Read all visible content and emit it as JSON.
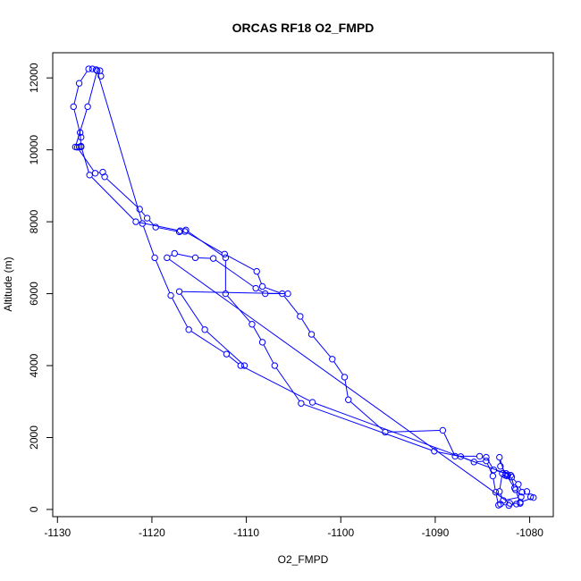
{
  "chart_data": {
    "type": "line",
    "title": "ORCAS RF18 O2_FMPD",
    "xlabel": "O2_FMPD",
    "ylabel": "Altitude (m)",
    "xlim": [
      -1130.5,
      -1077.5
    ],
    "ylim": [
      -200,
      12700
    ],
    "xticks": [
      -1130,
      -1120,
      -1110,
      -1100,
      -1090,
      -1080
    ],
    "yticks": [
      0,
      2000,
      4000,
      6000,
      8000,
      10000,
      12000
    ],
    "grid": false,
    "colors": {
      "series": "#0000ff",
      "axes": "#000000"
    },
    "series": [
      {
        "marker": "open-circle",
        "line": true,
        "points": [
          [
            -1125.4,
            12050
          ],
          [
            -1125.5,
            12200
          ],
          [
            -1125.9,
            12230
          ],
          [
            -1126.3,
            12250
          ],
          [
            -1126.7,
            12250
          ],
          [
            -1127.7,
            11850
          ],
          [
            -1128.3,
            11200
          ],
          [
            -1127.5,
            10350
          ],
          [
            -1127.6,
            10480
          ],
          [
            -1127.5,
            10080
          ],
          [
            -1127.7,
            10080
          ],
          [
            -1127.9,
            10070
          ],
          [
            -1126.0,
            9350
          ],
          [
            -1125.2,
            9380
          ],
          [
            -1125.0,
            9250
          ],
          [
            -1121.3,
            8350
          ],
          [
            -1120.5,
            8100
          ],
          [
            -1119.6,
            7850
          ],
          [
            -1117.1,
            7720
          ],
          [
            -1116.5,
            7730
          ],
          [
            -1112.3,
            7100
          ],
          [
            -1108.9,
            6620
          ],
          [
            -1108.3,
            6200
          ],
          [
            -1106.2,
            6000
          ],
          [
            -1104.3,
            5370
          ],
          [
            -1103.1,
            4870
          ],
          [
            -1100.9,
            4180
          ],
          [
            -1099.6,
            3680
          ],
          [
            -1099.2,
            3050
          ],
          [
            -1095.3,
            2150
          ],
          [
            -1089.2,
            2200
          ],
          [
            -1087.9,
            1480
          ],
          [
            -1085.3,
            1480
          ],
          [
            -1084.6,
            1450
          ],
          [
            -1083.8,
            1100
          ],
          [
            -1082.5,
            1000
          ],
          [
            -1081.9,
            900
          ],
          [
            -1081.2,
            700
          ],
          [
            -1080.8,
            480
          ],
          [
            -1080.3,
            500
          ],
          [
            -1079.9,
            350
          ],
          [
            -1079.6,
            330
          ],
          [
            -1081.0,
            200
          ],
          [
            -1081.4,
            150
          ],
          [
            -1082.2,
            110
          ],
          [
            -1083.1,
            150
          ],
          [
            -1083.3,
            120
          ],
          [
            -1083.6,
            480
          ],
          [
            -1083.9,
            930
          ],
          [
            -1084.6,
            1350
          ],
          [
            -1085.9,
            1320
          ],
          [
            -1087.3,
            1470
          ],
          [
            -1090.1,
            1620
          ],
          [
            -1104.2,
            2950
          ],
          [
            -1107.0,
            4000
          ],
          [
            -1108.3,
            4650
          ],
          [
            -1109.4,
            5150
          ],
          [
            -1112.2,
            6000
          ],
          [
            -1112.2,
            7000
          ],
          [
            -1116.4,
            7770
          ],
          [
            -1117.0,
            7750
          ],
          [
            -1121.7,
            8000
          ],
          [
            -1126.6,
            9300
          ],
          [
            -1127.5,
            10100
          ],
          [
            -1128.1,
            10080
          ],
          [
            -1126.8,
            11200
          ],
          [
            -1125.8,
            12200
          ],
          [
            -1121.0,
            7950
          ],
          [
            -1119.7,
            7000
          ],
          [
            -1118.0,
            5950
          ],
          [
            -1116.1,
            5000
          ],
          [
            -1112.1,
            4320
          ],
          [
            -1110.6,
            4000
          ],
          [
            -1103.0,
            2980
          ],
          [
            -1082.0,
            950
          ],
          [
            -1081.6,
            600
          ],
          [
            -1080.9,
            350
          ],
          [
            -1082.8,
            250
          ],
          [
            -1083.2,
            500
          ],
          [
            -1082.9,
            1000
          ],
          [
            -1082.3,
            960
          ],
          [
            -1083.1,
            1200
          ],
          [
            -1083.2,
            1450
          ],
          [
            -1082.6,
            950
          ],
          [
            -1082.4,
            930
          ],
          [
            -1081.5,
            550
          ],
          [
            -1081.0,
            170
          ],
          [
            -1082.1,
            170
          ],
          [
            -1118.4,
            7000
          ],
          [
            -1117.6,
            7120
          ],
          [
            -1115.4,
            7000
          ],
          [
            -1113.5,
            6980
          ],
          [
            -1109.0,
            6150
          ],
          [
            -1108.0,
            6000
          ],
          [
            -1105.6,
            6000
          ],
          [
            -1117.1,
            6060
          ],
          [
            -1114.4,
            5000
          ],
          [
            -1110.2,
            4000
          ]
        ]
      }
    ]
  }
}
